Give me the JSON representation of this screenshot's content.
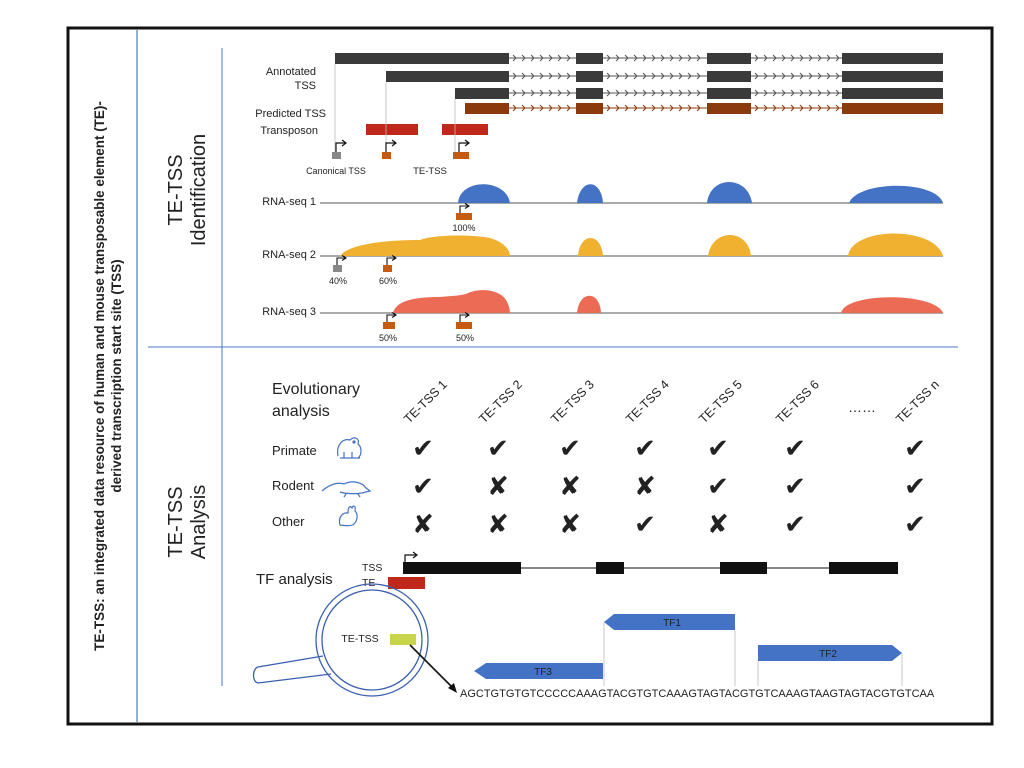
{
  "side_title": {
    "line1": "TE-TSS: an integrated data resource of human and mouse transposable element (TE)-",
    "line2": "derived transcription start site (TSS)"
  },
  "identification": {
    "section_label_1": "TE-TSS",
    "section_label_2": "Identification",
    "annotated_label_1": "Annotated",
    "annotated_label_2": "TSS",
    "predicted_label": "Predicted TSS",
    "transposon_label": "Transposon",
    "canonical_label": "Canonical TSS",
    "tetss_label": "TE-TSS",
    "rnaseq": [
      {
        "label": "RNA-seq 1",
        "pcts": [
          "100%"
        ]
      },
      {
        "label": "RNA-seq 2",
        "pcts": [
          "40%",
          "60%"
        ]
      },
      {
        "label": "RNA-seq 3",
        "pcts": [
          "50%",
          "50%"
        ]
      }
    ]
  },
  "analysis": {
    "section_label_1": "TE-TSS",
    "section_label_2": "Analysis",
    "evo_label_1": "Evolutionary",
    "evo_label_2": "analysis",
    "columns": [
      "TE-TSS 1",
      "TE-TSS 2",
      "TE-TSS 3",
      "TE-TSS 4",
      "TE-TSS 5",
      "TE-TSS 6",
      "TE-TSS n"
    ],
    "ellipsis": "……",
    "species": [
      {
        "name": "Primate",
        "icon": "gorilla-icon",
        "marks": [
          "check",
          "check",
          "check",
          "check",
          "check",
          "check",
          "check"
        ]
      },
      {
        "name": "Rodent",
        "icon": "rat-icon",
        "marks": [
          "check",
          "cross",
          "cross",
          "cross",
          "check",
          "check",
          "check"
        ]
      },
      {
        "name": "Other",
        "icon": "rabbit-icon",
        "marks": [
          "cross",
          "cross",
          "cross",
          "check",
          "cross",
          "check",
          "check"
        ]
      }
    ],
    "tf_label": "TF analysis",
    "tss_label": "TSS",
    "te_label": "TE",
    "magnifier_label": "TE-TSS",
    "tf1": "TF1",
    "tf2": "TF2",
    "tf3": "TF3",
    "sequence": "AGCTGTGTGTCCCCCAAAGTACGTGTCAAAGTAGTACGTGTCAAAGTAAGTAGTACGTGTCAA"
  },
  "colors": {
    "gray_exon": "#3a3a3a",
    "brown": "#8b3a0e",
    "red": "#c0281b",
    "blue": "#4472c4",
    "yellow": "#f0b030",
    "salmon": "#eb6b55",
    "orange_marker": "#c55a11",
    "tf_blue": "#4472c4",
    "lime": "#c8d44a"
  }
}
